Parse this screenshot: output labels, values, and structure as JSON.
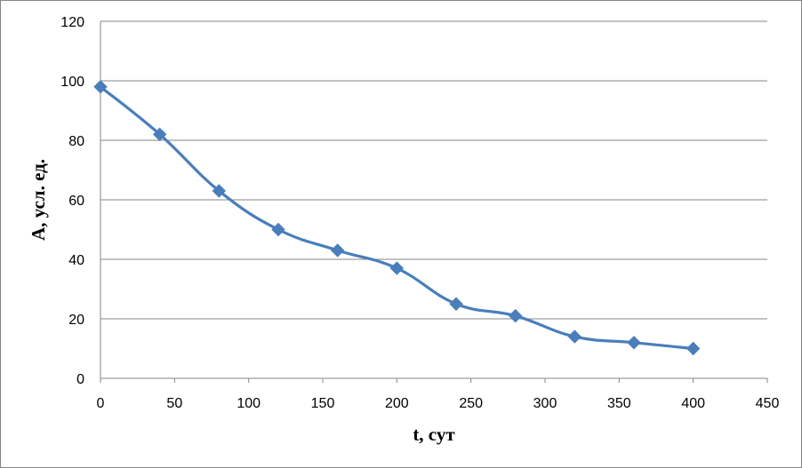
{
  "chart_data": {
    "type": "line",
    "title": "",
    "xlabel": "t, сут",
    "ylabel": "A, усл. ед.",
    "xlim": [
      0,
      450
    ],
    "ylim": [
      0,
      120
    ],
    "xticks": [
      0,
      50,
      100,
      150,
      200,
      250,
      300,
      350,
      400,
      450
    ],
    "yticks": [
      0,
      20,
      40,
      60,
      80,
      100,
      120
    ],
    "grid": "horizontal",
    "legend": "none",
    "series": [
      {
        "color": "#4a7ebb",
        "marker": "diamond",
        "smooth": true,
        "x": [
          0,
          40,
          80,
          120,
          160,
          200,
          240,
          280,
          320,
          360,
          400
        ],
        "y": [
          98,
          82,
          63,
          50,
          43,
          37,
          25,
          21,
          14,
          12,
          10
        ]
      }
    ]
  }
}
